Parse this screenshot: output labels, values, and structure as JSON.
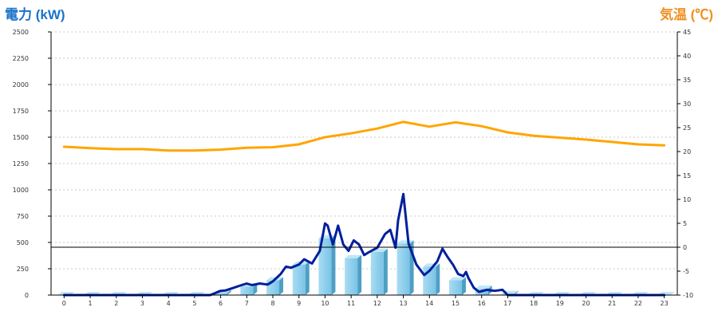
{
  "chart_data": {
    "type": "bar",
    "left_axis_label": "電力 (kW)",
    "right_axis_label": "気温 (℃)",
    "categories": [
      "0",
      "1",
      "2",
      "3",
      "4",
      "5",
      "6",
      "7",
      "8",
      "9",
      "10",
      "11",
      "12",
      "13",
      "14",
      "15",
      "16",
      "17",
      "18",
      "19",
      "20",
      "21",
      "22",
      "23"
    ],
    "y_left": {
      "min": 0,
      "max": 2500,
      "ticks": [
        "0",
        "250",
        "500",
        "750",
        "1000",
        "1250",
        "1500",
        "1750",
        "2000",
        "2250",
        "2500"
      ]
    },
    "y_right": {
      "min": -10,
      "max": 45,
      "ticks": [
        "-10",
        "-5",
        "0",
        "5",
        "10",
        "15",
        "20",
        "25",
        "30",
        "35",
        "40",
        "45"
      ]
    },
    "reference_line_right": 0,
    "grid": "horizontal-dashed",
    "series": [
      {
        "kind": "bar",
        "axis": "left",
        "color": "#87ceeb",
        "values": [
          0,
          0,
          0,
          0,
          0,
          0,
          20,
          80,
          140,
          290,
          540,
          350,
          410,
          490,
          270,
          140,
          60,
          10,
          0,
          0,
          0,
          0,
          0,
          0
        ]
      },
      {
        "kind": "line",
        "axis": "left",
        "color": "#001f9c",
        "x": [
          0,
          1,
          2,
          3,
          4,
          5,
          5.6,
          6,
          6.2,
          6.5,
          6.8,
          7,
          7.2,
          7.5,
          7.8,
          8,
          8.3,
          8.5,
          8.7,
          9,
          9.2,
          9.5,
          9.8,
          10,
          10.1,
          10.3,
          10.5,
          10.7,
          10.9,
          11.1,
          11.3,
          11.5,
          11.7,
          12,
          12.3,
          12.5,
          12.7,
          12.8,
          13,
          13.2,
          13.5,
          13.8,
          14,
          14.3,
          14.5,
          14.7,
          14.9,
          15.1,
          15.3,
          15.4,
          15.5,
          15.7,
          15.9,
          16.2,
          16.5,
          16.8,
          17,
          18,
          19,
          20,
          21,
          22,
          23
        ],
        "values": [
          0,
          0,
          0,
          0,
          0,
          0,
          0,
          40,
          45,
          70,
          95,
          110,
          95,
          110,
          100,
          130,
          200,
          270,
          260,
          290,
          340,
          300,
          420,
          680,
          660,
          480,
          660,
          480,
          420,
          520,
          480,
          380,
          410,
          450,
          580,
          620,
          450,
          710,
          960,
          490,
          290,
          190,
          230,
          320,
          440,
          360,
          290,
          200,
          180,
          220,
          160,
          70,
          30,
          50,
          40,
          50,
          0,
          0,
          0,
          0,
          0,
          0,
          0
        ]
      },
      {
        "kind": "line",
        "axis": "right",
        "color": "#ffa500",
        "x": [
          0,
          1,
          2,
          3,
          4,
          5,
          6,
          7,
          8,
          9,
          10,
          11,
          12,
          13,
          14,
          15,
          16,
          17,
          18,
          19,
          20,
          21,
          22,
          23
        ],
        "values": [
          21.0,
          20.7,
          20.5,
          20.5,
          20.2,
          20.2,
          20.4,
          20.8,
          20.9,
          21.5,
          23.0,
          23.8,
          24.8,
          26.2,
          25.2,
          26.1,
          25.3,
          24.0,
          23.3,
          22.9,
          22.5,
          22.0,
          21.5,
          21.3
        ]
      }
    ]
  }
}
